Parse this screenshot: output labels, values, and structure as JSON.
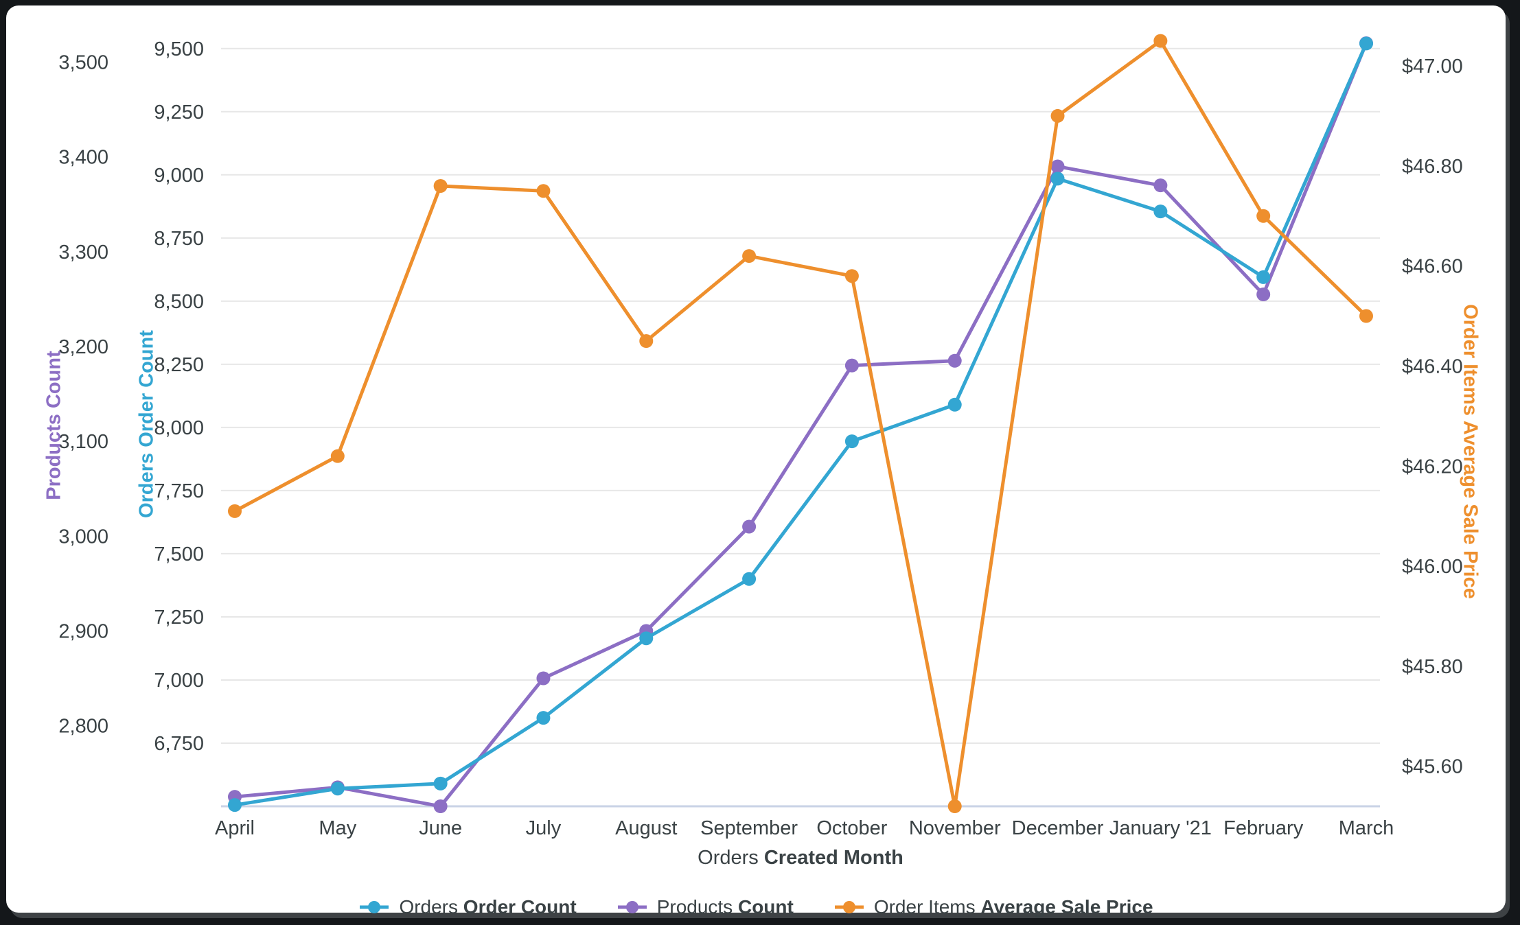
{
  "chart_data": {
    "type": "line",
    "title": "",
    "categories": [
      "April",
      "May",
      "June",
      "July",
      "August",
      "September",
      "October",
      "November",
      "December",
      "January '21",
      "February",
      "March"
    ],
    "series": [
      {
        "id": "orders-order-count",
        "label_prefix": "Orders ",
        "label_bold": "Order Count",
        "axis": "orders",
        "color": "#33a6d2",
        "values": [
          6505,
          6570,
          6590,
          6850,
          7165,
          7400,
          7945,
          8090,
          8985,
          8855,
          8595,
          9520
        ]
      },
      {
        "id": "products-count",
        "label_prefix": "Products ",
        "label_bold": "Count",
        "axis": "products",
        "color": "#8c6ec4",
        "values": [
          2725,
          2735,
          2715,
          2850,
          2900,
          3010,
          3180,
          3185,
          3390,
          3370,
          3255,
          3520
        ]
      },
      {
        "id": "order-items-average-sale-price",
        "label_prefix": "Order Items ",
        "label_bold": "Average Sale Price",
        "axis": "price",
        "color": "#ee8f2d",
        "values": [
          46.11,
          46.22,
          46.76,
          46.75,
          46.45,
          46.62,
          46.58,
          45.52,
          46.9,
          47.05,
          46.7,
          46.5
        ]
      }
    ],
    "axes": {
      "orders": {
        "title": "Orders Order Count",
        "color": "#33a6d2",
        "min": 6500,
        "max": 9570,
        "ticks": [
          6750,
          7000,
          7250,
          7500,
          7750,
          8000,
          8250,
          8500,
          8750,
          9000,
          9250,
          9500
        ],
        "format": "int",
        "side": "left-inner"
      },
      "products": {
        "title": "Products Count",
        "color": "#8c6ec4",
        "min": 2715,
        "max": 3533,
        "ticks": [
          2800,
          2900,
          3000,
          3100,
          3200,
          3300,
          3400,
          3500
        ],
        "format": "int",
        "side": "left-outer"
      },
      "price": {
        "title": "Order Items Average Sale Price",
        "color": "#ee8f2d",
        "min": 45.52,
        "max": 47.07,
        "ticks": [
          45.6,
          45.8,
          46.0,
          46.2,
          46.4,
          46.6,
          46.8,
          47.0
        ],
        "format": "usd",
        "side": "right"
      }
    },
    "xaxis": {
      "title_prefix": "Orders ",
      "title_bold": "Created Month"
    },
    "grid": true,
    "legend_position": "bottom",
    "gridline_color": "#e7e7e7",
    "baseline_color": "#c9d3e6",
    "text_color": "#3a4245"
  }
}
